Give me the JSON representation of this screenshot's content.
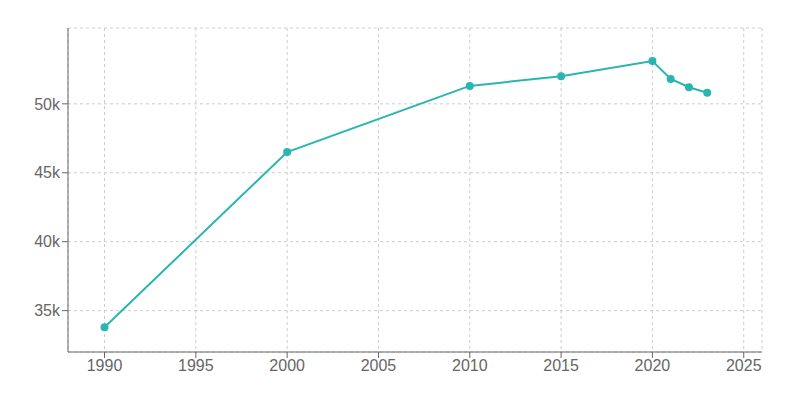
{
  "chart_data": {
    "type": "line",
    "x": [
      1990,
      2000,
      2010,
      2015,
      2020,
      2021,
      2022,
      2023
    ],
    "values": [
      33800,
      46500,
      51300,
      52000,
      53100,
      51800,
      51200,
      50800
    ],
    "color": "#2ab5b0",
    "marker": "circle",
    "xlim": [
      1988,
      2026
    ],
    "ylim": [
      32000,
      55500
    ],
    "xticks": [
      1990,
      1995,
      2000,
      2005,
      2010,
      2015,
      2020,
      2025
    ],
    "yticks": [
      {
        "value": 35000,
        "label": "35k"
      },
      {
        "value": 40000,
        "label": "40k"
      },
      {
        "value": 45000,
        "label": "45k"
      },
      {
        "value": 50000,
        "label": "50k"
      }
    ],
    "grid": true
  }
}
